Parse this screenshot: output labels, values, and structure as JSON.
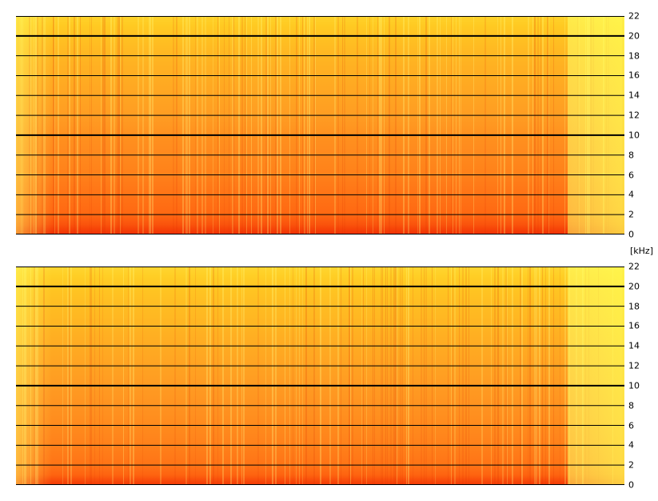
{
  "chart_data": [
    {
      "type": "heatmap",
      "name": "",
      "y_unit": "[kHz]",
      "ylim": [
        0,
        22
      ],
      "y_ticks": [
        0,
        2,
        4,
        6,
        8,
        10,
        12,
        14,
        16,
        18,
        20,
        22
      ],
      "y_tick_labels": [
        "0",
        "2",
        "4",
        "6",
        "8",
        "10",
        "12",
        "14",
        "16",
        "18",
        "20",
        "22"
      ],
      "emphasized_gridlines": [
        10,
        20
      ],
      "grid": true,
      "colormap": [
        "#ffff66",
        "#ffcc22",
        "#ff9922",
        "#ff6611",
        "#ee2200"
      ],
      "intensity_by_frequency_khz": [
        {
          "y": 0,
          "v": 0.95
        },
        {
          "y": 1,
          "v": 0.82
        },
        {
          "y": 2,
          "v": 0.74
        },
        {
          "y": 4,
          "v": 0.68
        },
        {
          "y": 6,
          "v": 0.62
        },
        {
          "y": 8,
          "v": 0.58
        },
        {
          "y": 10,
          "v": 0.54
        },
        {
          "y": 12,
          "v": 0.48
        },
        {
          "y": 14,
          "v": 0.44
        },
        {
          "y": 16,
          "v": 0.4
        },
        {
          "y": 18,
          "v": 0.36
        },
        {
          "y": 20,
          "v": 0.3
        },
        {
          "y": 22,
          "v": 0.22
        }
      ]
    },
    {
      "type": "heatmap",
      "name": "",
      "y_unit": "[kHz]",
      "ylim": [
        0,
        22
      ],
      "y_ticks": [
        0,
        2,
        4,
        6,
        8,
        10,
        12,
        14,
        16,
        18,
        20,
        22
      ],
      "y_tick_labels": [
        "0",
        "2",
        "4",
        "6",
        "8",
        "10",
        "12",
        "14",
        "16",
        "18",
        "20",
        "22"
      ],
      "emphasized_gridlines": [
        10,
        20
      ],
      "grid": true,
      "colormap": [
        "#ffff66",
        "#ffcc22",
        "#ff9922",
        "#ff6611",
        "#ee2200"
      ],
      "intensity_by_frequency_khz": [
        {
          "y": 0,
          "v": 0.92
        },
        {
          "y": 1,
          "v": 0.76
        },
        {
          "y": 2,
          "v": 0.68
        },
        {
          "y": 4,
          "v": 0.62
        },
        {
          "y": 6,
          "v": 0.57
        },
        {
          "y": 8,
          "v": 0.53
        },
        {
          "y": 10,
          "v": 0.49
        },
        {
          "y": 12,
          "v": 0.45
        },
        {
          "y": 14,
          "v": 0.41
        },
        {
          "y": 16,
          "v": 0.37
        },
        {
          "y": 18,
          "v": 0.33
        },
        {
          "y": 20,
          "v": 0.28
        },
        {
          "y": 22,
          "v": 0.2
        }
      ]
    }
  ],
  "axis_unit_label": "[kHz]"
}
